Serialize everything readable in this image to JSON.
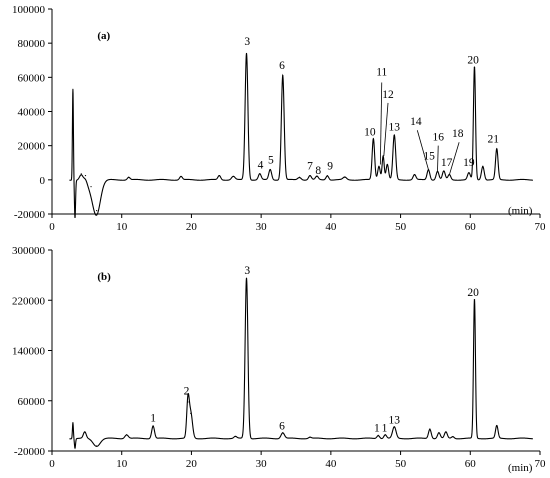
{
  "chart_data": [
    {
      "type": "line",
      "panel_label": "(a)",
      "xlabel": "(min)",
      "xlim": [
        0,
        70
      ],
      "ylim": [
        -20000,
        100000
      ],
      "x_ticks": [
        0,
        10,
        20,
        30,
        40,
        50,
        60,
        70
      ],
      "x_tick_labels": [
        "0",
        "10",
        "20",
        "30",
        "40",
        "50",
        "60",
        "70"
      ],
      "y_ticks": [
        -20000,
        0,
        20000,
        40000,
        60000,
        80000,
        100000
      ],
      "y_tick_labels": [
        "-20000",
        "0",
        "20000",
        "40000",
        "60000",
        "80000",
        "100000"
      ],
      "peaks": [
        {
          "x": 3.0,
          "y": 53000,
          "w": 0.07
        },
        {
          "x": 3.3,
          "y": -22000,
          "w": 0.08
        },
        {
          "x": 4.2,
          "y": 3500,
          "w": 0.25
        },
        {
          "x": 4.8,
          "y": 2500,
          "w": 0.25
        },
        {
          "x": 6.4,
          "y": -18000,
          "w": 0.55
        },
        {
          "x": 5.6,
          "y": -4000,
          "w": 0.8
        },
        {
          "x": 11.0,
          "y": 1500,
          "w": 0.2
        },
        {
          "x": 18.5,
          "y": 2000,
          "w": 0.2
        },
        {
          "x": 24.0,
          "y": 2500,
          "w": 0.2
        },
        {
          "x": 26.0,
          "y": 2000,
          "w": 0.25
        },
        {
          "x": 27.9,
          "y": 74000,
          "w": 0.2
        },
        {
          "x": 29.8,
          "y": 3500,
          "w": 0.2
        },
        {
          "x": 31.3,
          "y": 6000,
          "w": 0.2
        },
        {
          "x": 33.1,
          "y": 61000,
          "w": 0.2
        },
        {
          "x": 35.5,
          "y": 1500,
          "w": 0.25
        },
        {
          "x": 37.0,
          "y": 2500,
          "w": 0.2
        },
        {
          "x": 38.0,
          "y": 2000,
          "w": 0.2
        },
        {
          "x": 39.5,
          "y": 2500,
          "w": 0.2
        },
        {
          "x": 42.0,
          "y": 1500,
          "w": 0.25
        },
        {
          "x": 46.1,
          "y": 24000,
          "w": 0.18
        },
        {
          "x": 46.9,
          "y": 8000,
          "w": 0.18
        },
        {
          "x": 47.5,
          "y": 14000,
          "w": 0.15
        },
        {
          "x": 48.1,
          "y": 9000,
          "w": 0.18
        },
        {
          "x": 49.1,
          "y": 26000,
          "w": 0.2
        },
        {
          "x": 52.0,
          "y": 3000,
          "w": 0.2
        },
        {
          "x": 54.0,
          "y": 6000,
          "w": 0.2
        },
        {
          "x": 55.3,
          "y": 5000,
          "w": 0.2
        },
        {
          "x": 56.2,
          "y": 5000,
          "w": 0.2
        },
        {
          "x": 57.0,
          "y": 3000,
          "w": 0.2
        },
        {
          "x": 59.8,
          "y": 4000,
          "w": 0.2
        },
        {
          "x": 60.6,
          "y": 66000,
          "w": 0.15
        },
        {
          "x": 61.8,
          "y": 8000,
          "w": 0.2
        },
        {
          "x": 63.8,
          "y": 18000,
          "w": 0.18
        }
      ],
      "labels": [
        {
          "text": "3",
          "x": 28.0,
          "y": 79000
        },
        {
          "text": "4",
          "x": 29.9,
          "y": 6500
        },
        {
          "text": "5",
          "x": 31.4,
          "y": 9500
        },
        {
          "text": "6",
          "x": 33.0,
          "y": 65000
        },
        {
          "text": "7",
          "x": 37.0,
          "y": 6000
        },
        {
          "text": "8",
          "x": 38.2,
          "y": 3500
        },
        {
          "text": "9",
          "x": 39.9,
          "y": 6000
        },
        {
          "text": "10",
          "x": 45.6,
          "y": 26000
        },
        {
          "text": "11",
          "x": 47.3,
          "y": 61000
        },
        {
          "text": "12",
          "x": 48.2,
          "y": 48000
        },
        {
          "text": "13",
          "x": 49.1,
          "y": 29000
        },
        {
          "text": "14",
          "x": 52.2,
          "y": 32000
        },
        {
          "text": "15",
          "x": 54.1,
          "y": 12000
        },
        {
          "text": "16",
          "x": 55.4,
          "y": 23000
        },
        {
          "text": "17",
          "x": 56.6,
          "y": 8000
        },
        {
          "text": "18",
          "x": 58.2,
          "y": 25000
        },
        {
          "text": "19",
          "x": 59.8,
          "y": 8000
        },
        {
          "text": "20",
          "x": 60.4,
          "y": 68000
        },
        {
          "text": "21",
          "x": 63.3,
          "y": 22000
        }
      ],
      "leaders": [
        {
          "x1": 47.3,
          "y1": 57000,
          "x2": 47.1,
          "y2": 9000
        },
        {
          "x1": 48.2,
          "y1": 45000,
          "x2": 47.6,
          "y2": 14000
        },
        {
          "x1": 52.4,
          "y1": 29000,
          "x2": 54.0,
          "y2": 6000
        },
        {
          "x1": 55.4,
          "y1": 20000,
          "x2": 55.3,
          "y2": 5000
        },
        {
          "x1": 58.4,
          "y1": 22000,
          "x2": 57.0,
          "y2": 3000
        }
      ]
    },
    {
      "type": "line",
      "panel_label": "(b)",
      "xlabel": "(min)",
      "xlim": [
        0,
        70
      ],
      "ylim": [
        -20000,
        300000
      ],
      "x_ticks": [
        0,
        10,
        20,
        30,
        40,
        50,
        60,
        70
      ],
      "x_tick_labels": [
        "0",
        "10",
        "20",
        "30",
        "40",
        "50",
        "60",
        "70"
      ],
      "y_ticks": [
        -20000,
        60000,
        140000,
        220000,
        300000
      ],
      "y_tick_labels": [
        "-20000",
        "60000",
        "140000",
        "220000",
        "300000"
      ],
      "peaks": [
        {
          "x": 3.0,
          "y": 25000,
          "w": 0.07
        },
        {
          "x": 3.3,
          "y": -15000,
          "w": 0.08
        },
        {
          "x": 4.7,
          "y": 10000,
          "w": 0.2
        },
        {
          "x": 6.4,
          "y": -12000,
          "w": 0.5
        },
        {
          "x": 10.7,
          "y": 6000,
          "w": 0.25
        },
        {
          "x": 14.5,
          "y": 20000,
          "w": 0.2
        },
        {
          "x": 19.5,
          "y": 58000,
          "w": 0.18
        },
        {
          "x": 19.9,
          "y": 40000,
          "w": 0.25
        },
        {
          "x": 26.3,
          "y": 3000,
          "w": 0.2
        },
        {
          "x": 27.9,
          "y": 255000,
          "w": 0.2
        },
        {
          "x": 33.1,
          "y": 9000,
          "w": 0.25
        },
        {
          "x": 37.0,
          "y": 2000,
          "w": 0.2
        },
        {
          "x": 46.8,
          "y": 5000,
          "w": 0.2
        },
        {
          "x": 47.8,
          "y": 6000,
          "w": 0.2
        },
        {
          "x": 49.1,
          "y": 18000,
          "w": 0.25
        },
        {
          "x": 54.2,
          "y": 15000,
          "w": 0.2
        },
        {
          "x": 55.5,
          "y": 9000,
          "w": 0.2
        },
        {
          "x": 56.5,
          "y": 10000,
          "w": 0.2
        },
        {
          "x": 57.5,
          "y": 3000,
          "w": 0.2
        },
        {
          "x": 60.6,
          "y": 221000,
          "w": 0.14
        },
        {
          "x": 63.8,
          "y": 20000,
          "w": 0.18
        }
      ],
      "labels": [
        {
          "text": "1",
          "x": 14.5,
          "y": 27000
        },
        {
          "text": "2",
          "x": 19.3,
          "y": 70000
        },
        {
          "text": "3",
          "x": 28.0,
          "y": 262000
        },
        {
          "text": "6",
          "x": 33.0,
          "y": 14000
        },
        {
          "text": "1",
          "x": 46.6,
          "y": 11000
        },
        {
          "text": "1",
          "x": 47.7,
          "y": 11000
        },
        {
          "text": "13",
          "x": 49.1,
          "y": 24000
        },
        {
          "text": "20",
          "x": 60.4,
          "y": 227000
        }
      ],
      "leaders": []
    }
  ]
}
